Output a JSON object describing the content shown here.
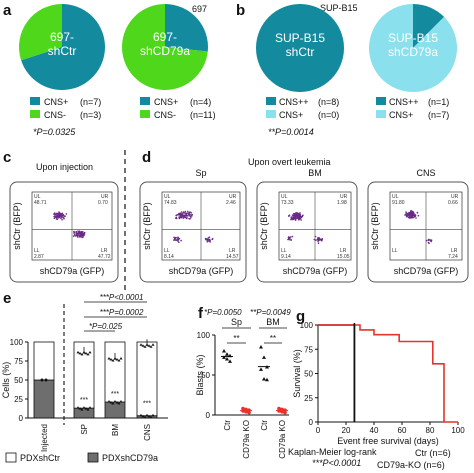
{
  "colors": {
    "teal": "#138a9d",
    "green": "#4fd81b",
    "light_blue": "#8be0ee",
    "red": "#e8322c",
    "dark_gray": "#6e6e6e",
    "purple": "#6a2a86"
  },
  "panel_labels": {
    "a": "a",
    "b": "b",
    "c": "c",
    "d": "d",
    "e": "e",
    "f": "f",
    "g": "g"
  },
  "panel_a": {
    "header": "697",
    "pval": "*P=0.0325"
  },
  "panel_b": {
    "header": "SUP-B15",
    "pval": "**P=0.0014"
  },
  "panel_c": {
    "title": "Upon injection"
  },
  "panel_d": {
    "title": "Upon overt leukemia"
  },
  "flow_axes": {
    "ylabel": "shCtr (BFP)",
    "xlabel": "shCD79a (GFP)"
  },
  "panel_e": {
    "legend": [
      "PDXshCtr",
      "PDXshCD79a"
    ]
  },
  "panel_f": {
    "pvals": [
      "*P=0.0050",
      "**P=0.0049"
    ]
  },
  "panel_g": {
    "footer": [
      "Kaplan-Meier log-rank",
      "***P<0.0001"
    ]
  },
  "chart_data": [
    {
      "id": "pie_697_shCtr",
      "type": "pie",
      "title": "697-\nshCtr",
      "slices": [
        {
          "label": "CNS+",
          "n": 7,
          "value_text": "(n=7)",
          "color": "#138a9d"
        },
        {
          "label": "CNS-",
          "n": 3,
          "value_text": "(n=3)",
          "color": "#4fd81b"
        }
      ]
    },
    {
      "id": "pie_697_shCD79a",
      "type": "pie",
      "title": "697-\nshCD79a",
      "slices": [
        {
          "label": "CNS+",
          "n": 4,
          "value_text": "(n=4)",
          "color": "#138a9d"
        },
        {
          "label": "CNS-",
          "n": 11,
          "value_text": "(n=11)",
          "color": "#4fd81b"
        }
      ]
    },
    {
      "id": "pie_sup_shCtr",
      "type": "pie",
      "title": "SUP-B15\nshCtr",
      "slices": [
        {
          "label": "CNS++",
          "n": 8,
          "value_text": "(n=8)",
          "color": "#138a9d"
        },
        {
          "label": "CNS+",
          "n": 0,
          "value_text": "(n=0)",
          "color": "#8be0ee"
        }
      ]
    },
    {
      "id": "pie_sup_shCD79a",
      "type": "pie",
      "title": "SUP-B15\nshCD79a",
      "slices": [
        {
          "label": "CNS++",
          "n": 1,
          "value_text": "(n=1)",
          "color": "#138a9d"
        },
        {
          "label": "CNS+",
          "n": 7,
          "value_text": "(n=7)",
          "color": "#8be0ee"
        }
      ]
    },
    {
      "id": "flow_injection",
      "type": "scatter",
      "title": "",
      "quadrants": {
        "UL": "48.71",
        "UR": "0.70",
        "LL": "2.87",
        "LR": "47.72"
      }
    },
    {
      "id": "flow_Sp",
      "type": "scatter",
      "title": "Sp",
      "quadrants": {
        "UL": "74.83",
        "UR": "2.46",
        "LL": "8.14",
        "LR": "14.57"
      }
    },
    {
      "id": "flow_BM",
      "type": "scatter",
      "title": "BM",
      "quadrants": {
        "UL": "73.33",
        "UR": "1.98",
        "LL": "9.14",
        "LR": "15.05"
      }
    },
    {
      "id": "flow_CNS",
      "type": "scatter",
      "title": "CNS",
      "quadrants": {
        "UL": "91.80",
        "UR": "0.66",
        "LL": "",
        "LR": "7.24"
      }
    },
    {
      "id": "bar_cells",
      "type": "bar",
      "ylabel": "Cells (%)",
      "categories": [
        "Injected",
        "SP",
        "BM",
        "CNS"
      ],
      "series": [
        {
          "name": "PDXshCtr",
          "values": [
            50,
            87,
            79,
            97
          ]
        },
        {
          "name": "PDXshCD79a",
          "values": [
            50,
            13,
            21,
            3
          ]
        }
      ],
      "ylim": [
        0,
        100
      ],
      "yticks": [
        0,
        25,
        50,
        75,
        100
      ],
      "brackets": [
        {
          "text": "***P<0.0001"
        },
        {
          "text": "***P=0.0002"
        },
        {
          "text": "*P=0.025"
        }
      ],
      "star_labels": [
        "***",
        "***",
        "***"
      ]
    },
    {
      "id": "scatter_blasts",
      "type": "scatter",
      "ylabel": "Blasts (%)",
      "groups": [
        {
          "title": "Sp",
          "sig": "**",
          "categories": [
            "Ctr",
            "CD79a KO"
          ]
        },
        {
          "title": "BM",
          "sig": "**",
          "categories": [
            "Ctr",
            "CD79a KO"
          ]
        }
      ],
      "series": [
        {
          "name": "Sp Ctr",
          "values": [
            80,
            76,
            74,
            72,
            70,
            67
          ],
          "color": "#111111"
        },
        {
          "name": "Sp CD79a KO",
          "values": [
            8,
            7,
            6,
            5,
            4,
            3
          ],
          "color": "#e8322c"
        },
        {
          "name": "BM Ctr",
          "values": [
            85,
            72,
            60,
            57,
            45,
            44
          ],
          "color": "#111111"
        },
        {
          "name": "BM CD79a KO",
          "values": [
            8,
            7,
            6,
            5,
            4,
            3
          ],
          "color": "#e8322c"
        }
      ],
      "ylim": [
        0,
        100
      ],
      "yticks": [
        0,
        50,
        100
      ]
    },
    {
      "id": "survival",
      "type": "line",
      "xlabel": "Event free survival (days)",
      "ylabel": "Survival (%)",
      "xlim": [
        0,
        100
      ],
      "ylim": [
        0,
        100
      ],
      "xticks": [
        0,
        20,
        40,
        60,
        80,
        100
      ],
      "yticks": [
        0,
        25,
        50,
        75,
        100
      ],
      "series": [
        {
          "name": "Ctr",
          "legend_text": "Ctr (n=6)",
          "color": "#111111",
          "x": [
            0,
            26,
            26
          ],
          "y": [
            100,
            100,
            0
          ]
        },
        {
          "name": "CD79a-KO",
          "legend_text": "CD79a-KO (n=6)",
          "color": "#e8322c",
          "x": [
            0,
            30,
            30,
            40,
            40,
            58,
            58,
            82,
            82,
            90,
            90,
            100
          ],
          "y": [
            100,
            100,
            95,
            95,
            90,
            90,
            83,
            83,
            60,
            60,
            0,
            0
          ]
        }
      ],
      "vline_x": 26
    }
  ]
}
